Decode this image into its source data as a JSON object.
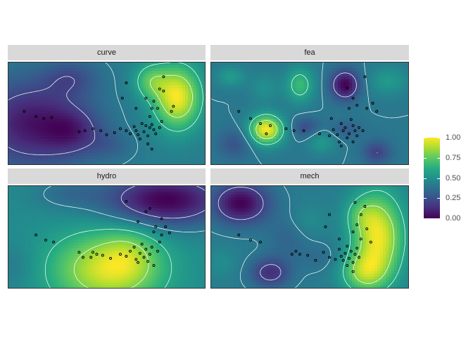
{
  "chart_data": {
    "type": "heatmap",
    "title": "",
    "xlabel": "",
    "ylabel": "",
    "colorscale": "viridis",
    "legend": {
      "title": "",
      "placement": "right",
      "range": [
        0,
        1
      ],
      "ticks": [
        "0.00",
        "0.25",
        "0.50",
        "0.75",
        "1.00"
      ]
    },
    "colors": {
      "viridis_stops": [
        "#440154",
        "#472c7a",
        "#3b518b",
        "#2c718e",
        "#21908d",
        "#27ad81",
        "#5cc863",
        "#aadc32",
        "#fde725"
      ],
      "contour": "#ffffff",
      "points": "#000000",
      "strip": "#d9d9d9"
    },
    "panels": [
      {
        "label": "curve",
        "base": 0.38,
        "bumps": [
          {
            "x": 0.86,
            "y": 0.66,
            "a": 0.66,
            "sx": 0.085,
            "sy": 0.22
          },
          {
            "x": 0.72,
            "y": 0.82,
            "a": 0.3,
            "sx": 0.06,
            "sy": 0.12
          },
          {
            "x": 0.12,
            "y": 0.4,
            "a": -0.42,
            "sx": 0.2,
            "sy": 0.3
          },
          {
            "x": 0.33,
            "y": 0.32,
            "a": -0.22,
            "sx": 0.1,
            "sy": 0.15
          },
          {
            "x": 0.32,
            "y": 0.85,
            "a": -0.18,
            "sx": 0.1,
            "sy": 0.12
          },
          {
            "x": 0.52,
            "y": 0.18,
            "a": -0.1,
            "sx": 0.08,
            "sy": 0.1
          }
        ],
        "points": [
          [
            0.08,
            0.52
          ],
          [
            0.14,
            0.47
          ],
          [
            0.18,
            0.45
          ],
          [
            0.22,
            0.46
          ],
          [
            0.39,
            0.33
          ],
          [
            0.43,
            0.35
          ],
          [
            0.47,
            0.33
          ],
          [
            0.5,
            0.29
          ],
          [
            0.54,
            0.31
          ],
          [
            0.57,
            0.35
          ],
          [
            0.6,
            0.33
          ],
          [
            0.62,
            0.3
          ],
          [
            0.64,
            0.37
          ],
          [
            0.65,
            0.33
          ],
          [
            0.66,
            0.29
          ],
          [
            0.67,
            0.25
          ],
          [
            0.68,
            0.4
          ],
          [
            0.69,
            0.32
          ],
          [
            0.7,
            0.38
          ],
          [
            0.71,
            0.28
          ],
          [
            0.72,
            0.36
          ],
          [
            0.73,
            0.39
          ],
          [
            0.74,
            0.34
          ],
          [
            0.75,
            0.3
          ],
          [
            0.73,
            0.15
          ],
          [
            0.71,
            0.2
          ],
          [
            0.77,
            0.36
          ],
          [
            0.78,
            0.42
          ],
          [
            0.72,
            0.47
          ],
          [
            0.73,
            0.55
          ],
          [
            0.74,
            0.62
          ],
          [
            0.76,
            0.55
          ],
          [
            0.77,
            0.74
          ],
          [
            0.79,
            0.72
          ],
          [
            0.7,
            0.65
          ],
          [
            0.83,
            0.52
          ],
          [
            0.84,
            0.57
          ],
          [
            0.6,
            0.8
          ],
          [
            0.79,
            0.86
          ],
          [
            0.58,
            0.65
          ],
          [
            0.65,
            0.55
          ],
          [
            0.36,
            0.32
          ]
        ]
      },
      {
        "label": "fea",
        "base": 0.4,
        "bumps": [
          {
            "x": 0.28,
            "y": 0.34,
            "a": 0.6,
            "sx": 0.06,
            "sy": 0.1
          },
          {
            "x": 0.45,
            "y": 0.78,
            "a": 0.28,
            "sx": 0.05,
            "sy": 0.12
          },
          {
            "x": 0.68,
            "y": 0.78,
            "a": -0.4,
            "sx": 0.05,
            "sy": 0.1
          },
          {
            "x": 0.68,
            "y": 0.34,
            "a": -0.1,
            "sx": 0.06,
            "sy": 0.06
          },
          {
            "x": 0.48,
            "y": 0.36,
            "a": -0.16,
            "sx": 0.05,
            "sy": 0.07
          },
          {
            "x": 0.84,
            "y": 0.12,
            "a": -0.2,
            "sx": 0.05,
            "sy": 0.08
          },
          {
            "x": 0.12,
            "y": 0.2,
            "a": -0.14,
            "sx": 0.06,
            "sy": 0.1
          },
          {
            "x": 0.1,
            "y": 0.86,
            "a": 0.15,
            "sx": 0.05,
            "sy": 0.07
          },
          {
            "x": 0.27,
            "y": 0.75,
            "a": 0.1,
            "sx": 0.05,
            "sy": 0.1
          },
          {
            "x": 0.9,
            "y": 0.82,
            "a": 0.14,
            "sx": 0.07,
            "sy": 0.1
          },
          {
            "x": 0.56,
            "y": 0.22,
            "a": 0.14,
            "sx": 0.05,
            "sy": 0.08
          }
        ],
        "points": [
          [
            0.14,
            0.52
          ],
          [
            0.2,
            0.45
          ],
          [
            0.25,
            0.4
          ],
          [
            0.3,
            0.38
          ],
          [
            0.28,
            0.3
          ],
          [
            0.38,
            0.35
          ],
          [
            0.42,
            0.33
          ],
          [
            0.47,
            0.33
          ],
          [
            0.6,
            0.28
          ],
          [
            0.62,
            0.34
          ],
          [
            0.64,
            0.29
          ],
          [
            0.66,
            0.4
          ],
          [
            0.67,
            0.33
          ],
          [
            0.68,
            0.36
          ],
          [
            0.69,
            0.26
          ],
          [
            0.7,
            0.3
          ],
          [
            0.71,
            0.44
          ],
          [
            0.72,
            0.38
          ],
          [
            0.73,
            0.33
          ],
          [
            0.74,
            0.28
          ],
          [
            0.75,
            0.36
          ],
          [
            0.65,
            0.22
          ],
          [
            0.72,
            0.22
          ],
          [
            0.61,
            0.45
          ],
          [
            0.7,
            0.55
          ],
          [
            0.74,
            0.58
          ],
          [
            0.79,
            0.55
          ],
          [
            0.82,
            0.6
          ],
          [
            0.78,
            0.86
          ],
          [
            0.69,
            0.75
          ],
          [
            0.72,
            0.65
          ],
          [
            0.84,
            0.52
          ],
          [
            0.77,
            0.33
          ],
          [
            0.66,
            0.18
          ],
          [
            0.55,
            0.3
          ]
        ]
      },
      {
        "label": "hydro",
        "base": 0.5,
        "bumps": [
          {
            "x": 0.5,
            "y": 0.18,
            "a": 0.5,
            "sx": 0.2,
            "sy": 0.26
          },
          {
            "x": 0.62,
            "y": 0.35,
            "a": 0.15,
            "sx": 0.1,
            "sy": 0.2
          },
          {
            "x": 0.8,
            "y": 0.86,
            "a": -0.52,
            "sx": 0.22,
            "sy": 0.18
          },
          {
            "x": 0.3,
            "y": 0.92,
            "a": -0.12,
            "sx": 0.12,
            "sy": 0.1
          },
          {
            "x": 0.02,
            "y": 0.2,
            "a": -0.08,
            "sx": 0.08,
            "sy": 0.15
          }
        ],
        "points": [
          [
            0.14,
            0.52
          ],
          [
            0.19,
            0.47
          ],
          [
            0.23,
            0.45
          ],
          [
            0.38,
            0.3
          ],
          [
            0.43,
            0.35
          ],
          [
            0.45,
            0.33
          ],
          [
            0.48,
            0.32
          ],
          [
            0.52,
            0.29
          ],
          [
            0.57,
            0.33
          ],
          [
            0.6,
            0.31
          ],
          [
            0.62,
            0.36
          ],
          [
            0.64,
            0.4
          ],
          [
            0.65,
            0.28
          ],
          [
            0.66,
            0.25
          ],
          [
            0.67,
            0.34
          ],
          [
            0.68,
            0.43
          ],
          [
            0.69,
            0.3
          ],
          [
            0.7,
            0.38
          ],
          [
            0.71,
            0.26
          ],
          [
            0.72,
            0.33
          ],
          [
            0.73,
            0.4
          ],
          [
            0.74,
            0.22
          ],
          [
            0.76,
            0.36
          ],
          [
            0.77,
            0.45
          ],
          [
            0.74,
            0.55
          ],
          [
            0.75,
            0.6
          ],
          [
            0.78,
            0.68
          ],
          [
            0.8,
            0.6
          ],
          [
            0.82,
            0.54
          ],
          [
            0.78,
            0.52
          ],
          [
            0.7,
            0.75
          ],
          [
            0.72,
            0.78
          ],
          [
            0.6,
            0.85
          ],
          [
            0.66,
            0.65
          ],
          [
            0.42,
            0.3
          ],
          [
            0.36,
            0.35
          ]
        ]
      },
      {
        "label": "mech",
        "base": 0.38,
        "bumps": [
          {
            "x": 0.85,
            "y": 0.5,
            "a": 0.5,
            "sx": 0.09,
            "sy": 0.3
          },
          {
            "x": 0.77,
            "y": 0.15,
            "a": 0.3,
            "sx": 0.08,
            "sy": 0.14
          },
          {
            "x": 0.76,
            "y": 0.72,
            "a": 0.14,
            "sx": 0.06,
            "sy": 0.12
          },
          {
            "x": 0.15,
            "y": 0.83,
            "a": -0.38,
            "sx": 0.1,
            "sy": 0.14
          },
          {
            "x": 0.3,
            "y": 0.15,
            "a": -0.26,
            "sx": 0.07,
            "sy": 0.1
          },
          {
            "x": 0.55,
            "y": 0.3,
            "a": -0.06,
            "sx": 0.08,
            "sy": 0.1
          },
          {
            "x": 0.38,
            "y": 0.48,
            "a": -0.08,
            "sx": 0.07,
            "sy": 0.14
          },
          {
            "x": 0.5,
            "y": 0.66,
            "a": 0.06,
            "sx": 0.06,
            "sy": 0.1
          },
          {
            "x": 0.05,
            "y": 0.25,
            "a": 0.06,
            "sx": 0.06,
            "sy": 0.1
          }
        ],
        "points": [
          [
            0.14,
            0.52
          ],
          [
            0.2,
            0.47
          ],
          [
            0.25,
            0.45
          ],
          [
            0.41,
            0.33
          ],
          [
            0.43,
            0.36
          ],
          [
            0.45,
            0.33
          ],
          [
            0.49,
            0.32
          ],
          [
            0.53,
            0.27
          ],
          [
            0.57,
            0.35
          ],
          [
            0.6,
            0.3
          ],
          [
            0.63,
            0.28
          ],
          [
            0.65,
            0.38
          ],
          [
            0.66,
            0.31
          ],
          [
            0.67,
            0.27
          ],
          [
            0.68,
            0.34
          ],
          [
            0.69,
            0.41
          ],
          [
            0.7,
            0.29
          ],
          [
            0.71,
            0.36
          ],
          [
            0.72,
            0.25
          ],
          [
            0.73,
            0.33
          ],
          [
            0.74,
            0.39
          ],
          [
            0.75,
            0.3
          ],
          [
            0.76,
            0.48
          ],
          [
            0.72,
            0.55
          ],
          [
            0.74,
            0.62
          ],
          [
            0.76,
            0.72
          ],
          [
            0.78,
            0.8
          ],
          [
            0.73,
            0.84
          ],
          [
            0.6,
            0.72
          ],
          [
            0.58,
            0.6
          ],
          [
            0.65,
            0.48
          ],
          [
            0.79,
            0.58
          ],
          [
            0.81,
            0.45
          ],
          [
            0.69,
            0.22
          ],
          [
            0.72,
            0.16
          ]
        ]
      }
    ]
  }
}
